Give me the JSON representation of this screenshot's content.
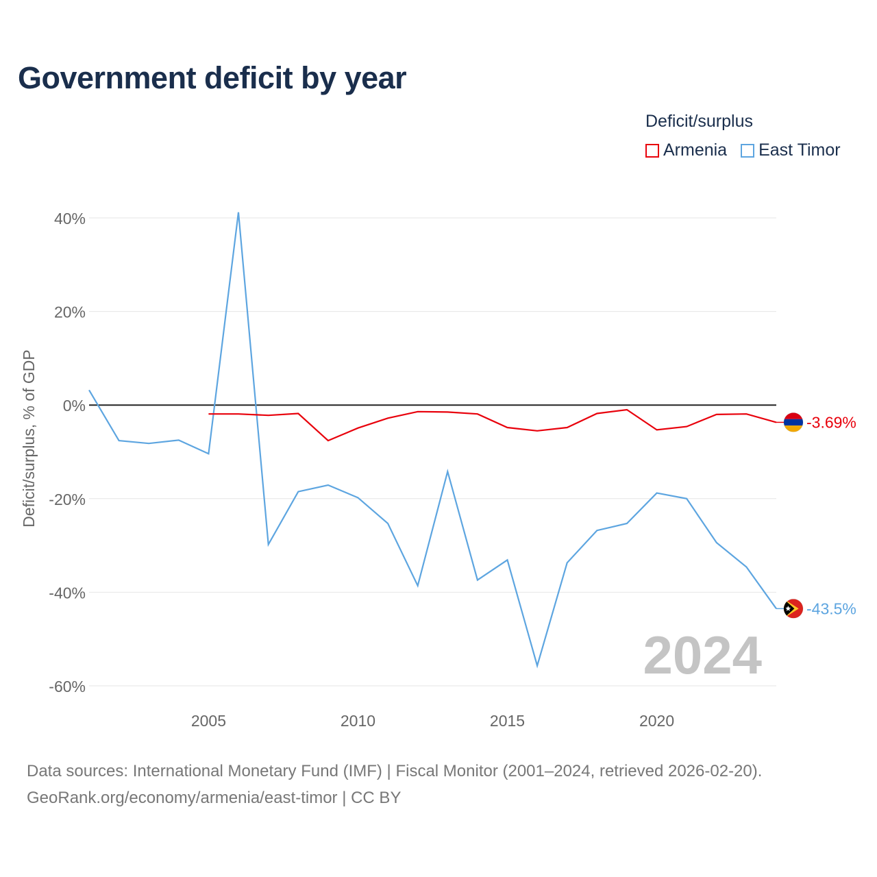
{
  "title": "Government deficit by year",
  "legend": {
    "title": "Deficit/surplus",
    "items": [
      {
        "name": "Armenia",
        "color": "#e8000b"
      },
      {
        "name": "East Timor",
        "color": "#5da5e0"
      }
    ]
  },
  "footer": {
    "line1": "Data sources: International Monetary Fund (IMF) | Fiscal Monitor (2001–2024, retrieved 2026-02-20).",
    "line2": "GeoRank.org/economy/armenia/east-timor | CC BY"
  },
  "chart_data": {
    "type": "line",
    "title": "Government deficit by year",
    "xlabel": "",
    "ylabel": "Deficit/surplus, % of GDP",
    "ylim": [
      -60,
      40
    ],
    "xlim": [
      2001,
      2024
    ],
    "xticks": [
      2005,
      2010,
      2015,
      2020
    ],
    "xtick_labels": [
      "2005",
      "2010",
      "2015",
      "2020"
    ],
    "yticks": [
      40,
      20,
      0,
      -20,
      -40,
      -60
    ],
    "ytick_labels": [
      "40%",
      "20%",
      "0%",
      "-20%",
      "-40%",
      "-60%"
    ],
    "watermark_year": "2024",
    "grid": true,
    "series": [
      {
        "name": "Armenia",
        "color": "#e8000b",
        "flag": "armenia",
        "end_label": "-3.69%",
        "x": [
          2005,
          2006,
          2007,
          2008,
          2009,
          2010,
          2011,
          2012,
          2013,
          2014,
          2015,
          2016,
          2017,
          2018,
          2019,
          2020,
          2021,
          2022,
          2023,
          2024
        ],
        "values": [
          -1.9,
          -1.9,
          -2.2,
          -1.8,
          -7.6,
          -4.9,
          -2.8,
          -1.4,
          -1.5,
          -1.9,
          -4.8,
          -5.5,
          -4.8,
          -1.8,
          -1.0,
          -5.3,
          -4.6,
          -2.0,
          -1.9,
          -3.69
        ]
      },
      {
        "name": "East Timor",
        "color": "#5da5e0",
        "flag": "east-timor",
        "end_label": "-43.5%",
        "x": [
          2001,
          2002,
          2003,
          2004,
          2005,
          2006,
          2007,
          2008,
          2009,
          2010,
          2011,
          2012,
          2013,
          2014,
          2015,
          2016,
          2017,
          2018,
          2019,
          2020,
          2021,
          2022,
          2023,
          2024
        ],
        "values": [
          3.2,
          -7.6,
          -8.2,
          -7.5,
          -10.4,
          41.2,
          -29.8,
          -18.5,
          -17.1,
          -19.8,
          -25.3,
          -38.6,
          -14.2,
          -37.4,
          -33.1,
          -55.7,
          -33.7,
          -26.8,
          -25.3,
          -18.8,
          -20.0,
          -29.4,
          -34.6,
          -43.5
        ]
      }
    ]
  }
}
